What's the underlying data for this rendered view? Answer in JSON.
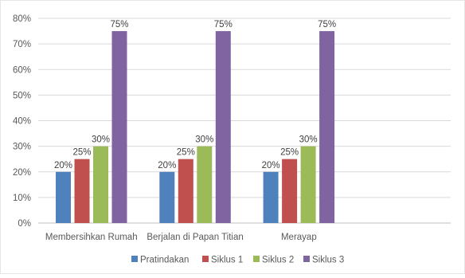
{
  "chart_data": {
    "type": "bar",
    "title": "",
    "xlabel": "",
    "ylabel": "",
    "categories": [
      "Membersihkan Rumah",
      "Berjalan di Papan Titian",
      "Merayap"
    ],
    "ylim": [
      0,
      80
    ],
    "y_ticks": [
      0,
      10,
      20,
      30,
      40,
      50,
      60,
      70,
      80
    ],
    "y_tick_labels": [
      "0%",
      "10%",
      "20%",
      "30%",
      "40%",
      "50%",
      "60%",
      "70%",
      "80%"
    ],
    "grid": true,
    "legend_position": "bottom",
    "series": [
      {
        "name": "Pratindakan",
        "color": "#4f81bd",
        "values": [
          20,
          20,
          20
        ],
        "labels": [
          "20%",
          "20%",
          "20%"
        ]
      },
      {
        "name": "Siklus 1",
        "color": "#c0504d",
        "values": [
          25,
          25,
          25
        ],
        "labels": [
          "25%",
          "25%",
          "25%"
        ]
      },
      {
        "name": "Siklus 2",
        "color": "#9bbb59",
        "values": [
          30,
          30,
          30
        ],
        "labels": [
          "30%",
          "30%",
          "30%"
        ]
      },
      {
        "name": "Siklus 3",
        "color": "#8064a2",
        "values": [
          75,
          75,
          75
        ],
        "labels": [
          "75%",
          "75%",
          "75%"
        ]
      }
    ]
  }
}
